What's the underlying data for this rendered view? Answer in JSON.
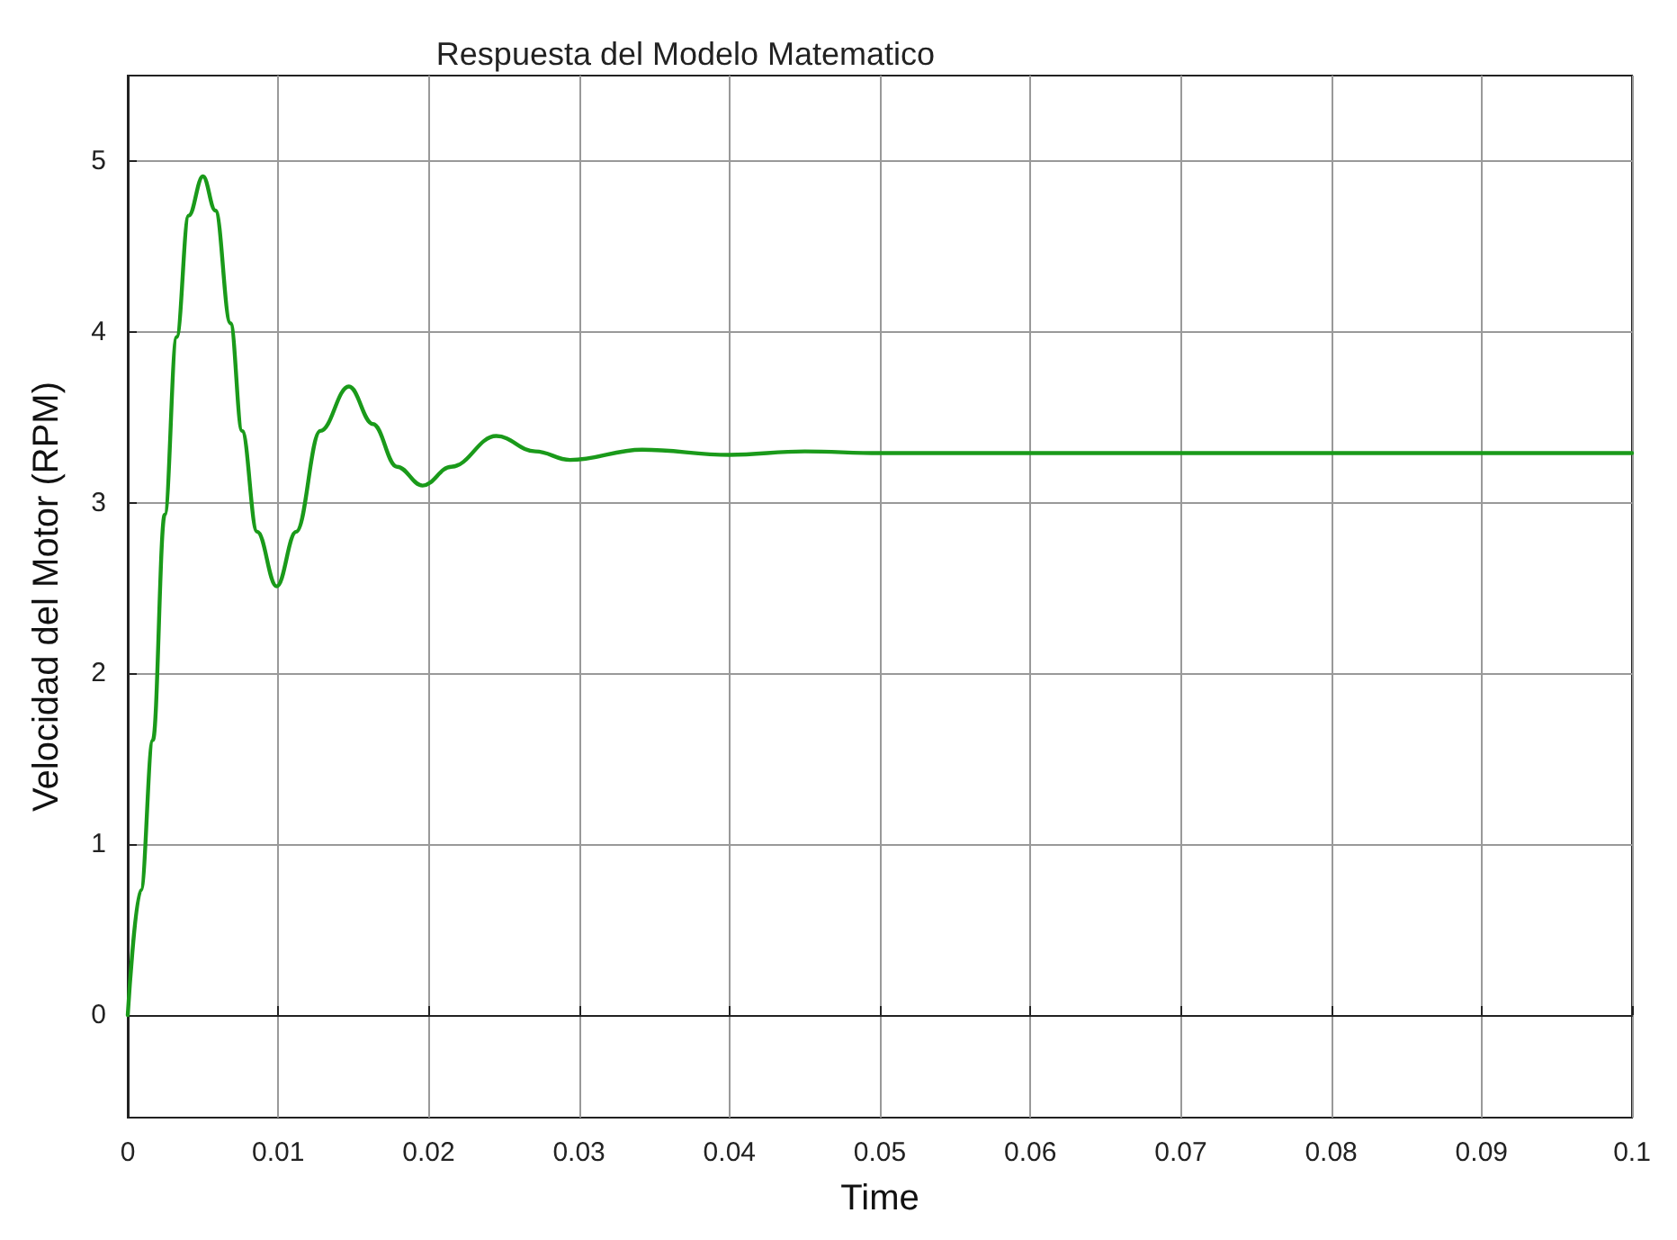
{
  "chart_data": {
    "type": "line",
    "title": "Respuesta del Modelo Matematico",
    "xlabel": "Time",
    "ylabel": "Velocidad del Motor (RPM)",
    "x": [
      0,
      0.00087,
      0.00167,
      0.00246,
      0.00325,
      0.00405,
      0.005,
      0.00583,
      0.00683,
      0.0076,
      0.0086,
      0.0099,
      0.0112,
      0.0128,
      0.0147,
      0.0163,
      0.0179,
      0.0196,
      0.0215,
      0.0245,
      0.0271,
      0.0294,
      0.0342,
      0.04,
      0.045,
      0.05,
      0.06,
      0.08,
      0.1
    ],
    "series": [
      {
        "color": "#1a9a1a",
        "values": [
          0,
          0.73,
          1.61,
          2.93,
          3.97,
          4.68,
          4.91,
          4.71,
          4.05,
          3.42,
          2.83,
          2.51,
          2.83,
          3.42,
          3.68,
          3.46,
          3.21,
          3.1,
          3.21,
          3.39,
          3.3,
          3.25,
          3.31,
          3.28,
          3.3,
          3.29,
          3.29,
          3.29,
          3.29
        ]
      }
    ],
    "xlim": [
      0,
      0.1
    ],
    "xticks": [
      0,
      0.01,
      0.02,
      0.03,
      0.04,
      0.05,
      0.06,
      0.07,
      0.08,
      0.09,
      0.1
    ],
    "ylim": [
      -0.6,
      5.5
    ],
    "yticks": [
      0,
      1,
      2,
      3,
      4,
      5
    ],
    "grid": true,
    "marker": "none",
    "line_style": "solid"
  }
}
